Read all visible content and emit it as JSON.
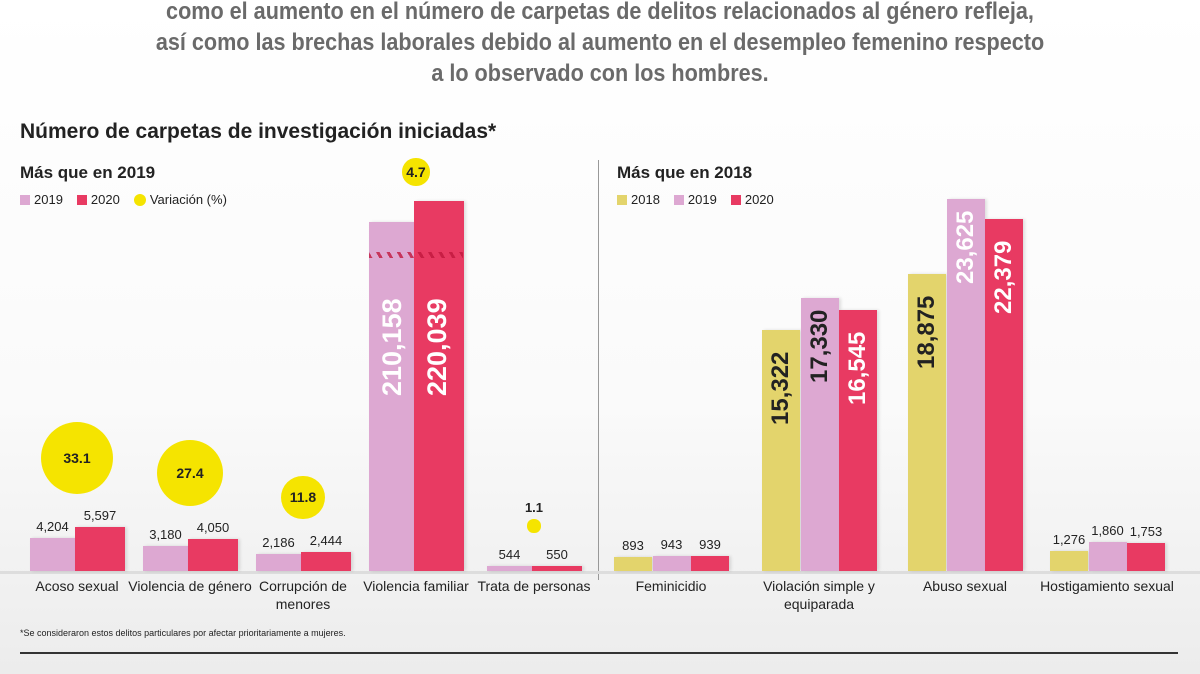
{
  "intro_text": "como el aumento en el número de carpetas de delitos relacionados al género refleja, así como las brechas laborales debido al aumento en el desempleo femenino respecto a lo observado con los hombres.",
  "title": "Número de carpetas de investigación iniciadas*",
  "footnote": "*Se consideraron estos delitos particulares por afectar prioritariamente a mujeres.",
  "colors": {
    "2018": "#e3d46c",
    "2019": "#dda8d2",
    "2020": "#e83a62",
    "variation": "#f5e400"
  },
  "chart_data": [
    {
      "type": "bar",
      "subtitle": "Más que en 2019",
      "legend": [
        "2019",
        "2020",
        "Variación (%)"
      ],
      "categories": [
        "Acoso sexual",
        "Violencia de género",
        "Corrupción de menores",
        "Violencia familiar",
        "Trata de personas"
      ],
      "series": [
        {
          "name": "2019",
          "values": [
            4204,
            3180,
            2186,
            210158,
            544
          ]
        },
        {
          "name": "2020",
          "values": [
            5597,
            4050,
            2444,
            220039,
            550
          ]
        }
      ],
      "variation_pct": [
        33.1,
        27.4,
        11.8,
        4.7,
        1.1
      ],
      "labels": {
        "2019": [
          "4,204",
          "3,180",
          "2,186",
          "210,158",
          "544"
        ],
        "2020": [
          "5,597",
          "4,050",
          "2,444",
          "220,039",
          "550"
        ],
        "variation": [
          "33.1",
          "27.4",
          "11.8",
          "4.7",
          "1.1"
        ]
      },
      "broken_axis": true
    },
    {
      "type": "bar",
      "subtitle": "Más que en 2018",
      "legend": [
        "2018",
        "2019",
        "2020"
      ],
      "categories": [
        "Feminicidio",
        "Violación simple y equiparada",
        "Abuso sexual",
        "Hostigamiento sexual"
      ],
      "series": [
        {
          "name": "2018",
          "values": [
            893,
            15322,
            18875,
            1276
          ]
        },
        {
          "name": "2019",
          "values": [
            943,
            17330,
            23625,
            1860
          ]
        },
        {
          "name": "2020",
          "values": [
            939,
            16545,
            22379,
            1753
          ]
        }
      ],
      "labels": {
        "2018": [
          "893",
          "15,322",
          "18,875",
          "1,276"
        ],
        "2019": [
          "943",
          "17,330",
          "23,625",
          "1,860"
        ],
        "2020": [
          "939",
          "16,545",
          "22,379",
          "1,753"
        ]
      }
    }
  ]
}
